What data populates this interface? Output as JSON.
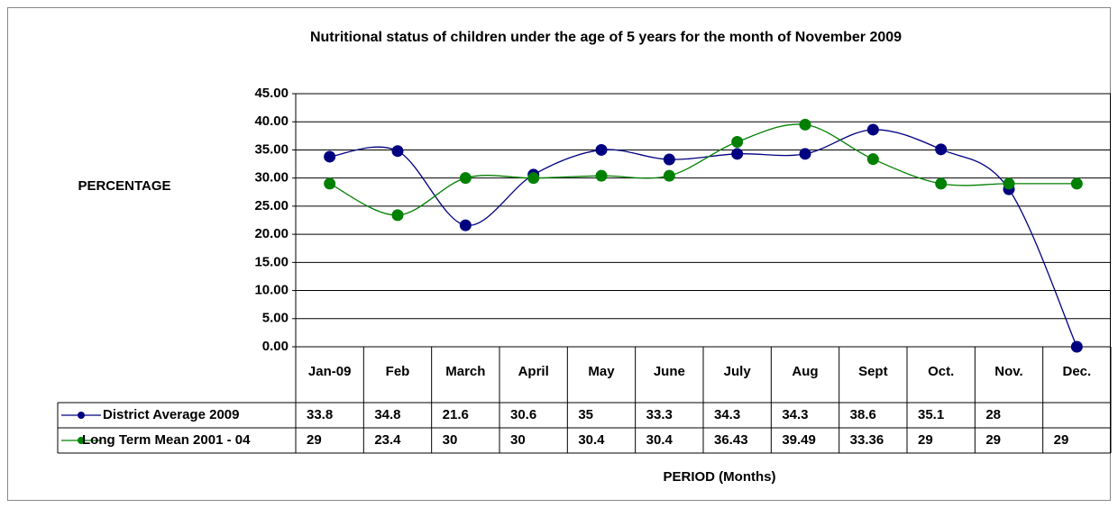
{
  "chart_data": {
    "type": "line",
    "title": "Nutritional status of children under the age of 5 years for the month of November 2009",
    "y_label": "PERCENTAGE",
    "x_label": "PERIOD (Months)",
    "categories": [
      "Jan-09",
      "Feb",
      "March",
      "April",
      "May",
      "June",
      "July",
      "Aug",
      "Sept",
      "Oct.",
      "Nov.",
      "Dec."
    ],
    "series": [
      {
        "name": "District Average 2009",
        "color": "#000080",
        "values": [
          33.8,
          34.8,
          21.6,
          30.6,
          35,
          33.3,
          34.3,
          34.3,
          38.6,
          35.1,
          28,
          0
        ],
        "value_labels": [
          "33.8",
          "34.8",
          "21.6",
          "30.6",
          "35",
          "33.3",
          "34.3",
          "34.3",
          "38.6",
          "35.1",
          "28",
          null
        ]
      },
      {
        "name": "Long Term Mean 2001 - 04",
        "color": "#008000",
        "values": [
          29,
          23.4,
          30,
          30,
          30.4,
          30.4,
          36.43,
          39.49,
          33.36,
          29,
          29,
          29
        ]
      }
    ],
    "ylim": [
      0,
      45
    ],
    "yticks": [
      {
        "value": 0,
        "label": "0.00"
      },
      {
        "value": 5,
        "label": "5.00"
      },
      {
        "value": 10,
        "label": "10.00"
      },
      {
        "value": 15,
        "label": "15.00"
      },
      {
        "value": 20,
        "label": "20.00"
      },
      {
        "value": 25,
        "label": "25.00"
      },
      {
        "value": 30,
        "label": "30.00"
      },
      {
        "value": 35,
        "label": "35.00"
      },
      {
        "value": 40,
        "label": "40.00"
      },
      {
        "value": 45,
        "label": "45.00"
      }
    ],
    "grid": true,
    "smooth": true
  }
}
